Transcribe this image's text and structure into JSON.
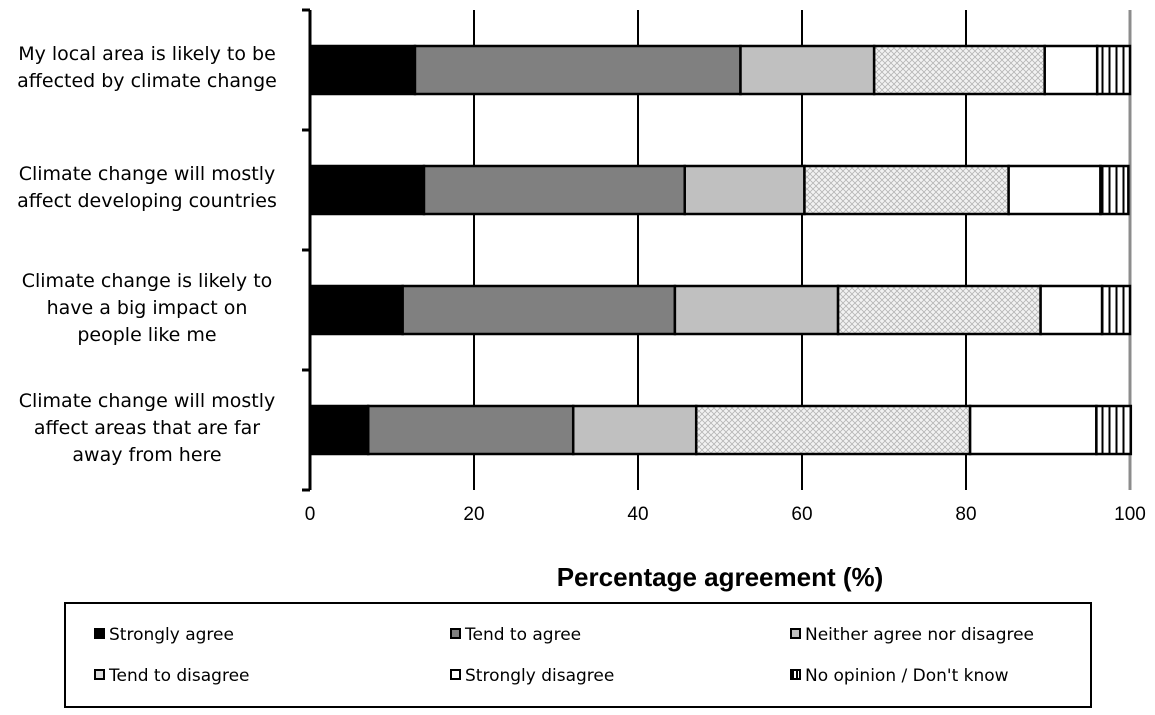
{
  "chart_data": {
    "type": "bar",
    "orientation": "horizontal",
    "stacked": true,
    "categories": [
      "My local area is likely to be\naffected by climate change",
      "Climate change will mostly\naffect developing countries",
      "Climate change is likely to\nhave a big impact on\npeople like me",
      "Climate change will mostly\naffect areas that are far\naway from here"
    ],
    "series": [
      {
        "name": "Strongly agree",
        "values": [
          12.8,
          13.9,
          11.3,
          7.1
        ],
        "color": "#000000",
        "pattern": "solid"
      },
      {
        "name": "Tend to agree",
        "values": [
          39.7,
          31.8,
          33.2,
          25.0
        ],
        "color": "#808080",
        "pattern": "solid"
      },
      {
        "name": "Neither agree nor disagree",
        "values": [
          16.3,
          14.6,
          19.9,
          15.0
        ],
        "color": "#c0c0c0",
        "pattern": "solid"
      },
      {
        "name": "Tend to disagree",
        "values": [
          20.8,
          24.9,
          24.7,
          33.4
        ],
        "color": "#e8e8e8",
        "pattern": "crosshatch"
      },
      {
        "name": "Strongly disagree",
        "values": [
          6.4,
          11.2,
          7.5,
          15.4
        ],
        "color": "#ffffff",
        "pattern": "solid"
      },
      {
        "name": "No opinion / Don't know",
        "values": [
          4.0,
          3.4,
          3.4,
          4.2
        ],
        "color": "#ffffff",
        "pattern": "vertical-lines"
      }
    ],
    "x_ticks": [
      "0",
      "20",
      "40",
      "60",
      "80",
      "100"
    ],
    "xlim": [
      0,
      100
    ],
    "xlabel": "Percentage agreement (%)",
    "ylabel": "",
    "title": "",
    "grid": "vertical",
    "legend_position": "bottom"
  }
}
